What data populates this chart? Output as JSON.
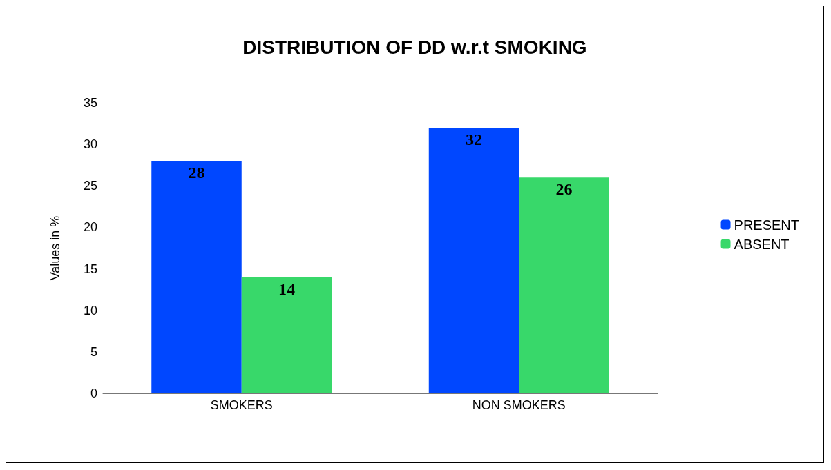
{
  "chart_data": {
    "type": "bar",
    "title": "DISTRIBUTION OF DD w.r.t SMOKING",
    "ylabel": "Values in %",
    "categories": [
      "SMOKERS",
      "NON SMOKERS"
    ],
    "series": [
      {
        "name": "PRESENT",
        "color": "#0047ff",
        "values": [
          28,
          32
        ]
      },
      {
        "name": "ABSENT",
        "color": "#38d86a",
        "values": [
          14,
          26
        ]
      }
    ],
    "ylim": [
      0,
      35
    ],
    "yticks": [
      0,
      5,
      10,
      15,
      20,
      25,
      30,
      35
    ],
    "grid": false,
    "legend": "right",
    "data_labels": true
  }
}
